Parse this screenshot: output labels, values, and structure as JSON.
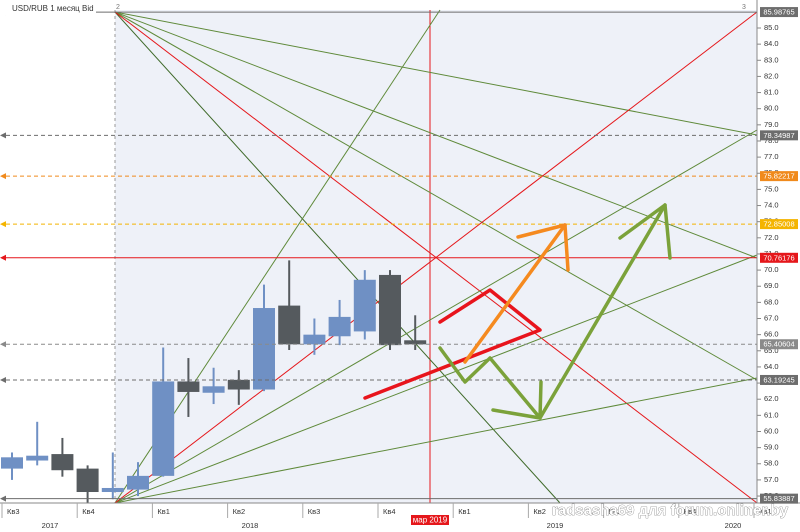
{
  "chart_data": {
    "type": "candlestick",
    "title": "USD/RUB 1 месяц Bid",
    "open": [
      57.7,
      58.2,
      58.6,
      57.7,
      56.25,
      56.4,
      57.25,
      63.1,
      62.4,
      63.2,
      62.6,
      67.8,
      65.4,
      65.9,
      66.2,
      69.7,
      65.65
    ],
    "high": [
      58.7,
      60.6,
      59.6,
      57.9,
      58.7,
      58.1,
      65.2,
      64.55,
      63.95,
      63.8,
      69.1,
      70.6,
      67.0,
      68.15,
      70.0,
      70.0,
      67.2
    ],
    "low": [
      57.0,
      57.9,
      57.2,
      55.6,
      55.8,
      56.0,
      57.2,
      60.9,
      61.7,
      61.65,
      62.5,
      65.05,
      64.75,
      65.35,
      65.7,
      65.05,
      65.05
    ],
    "close": [
      58.4,
      58.5,
      57.6,
      56.25,
      56.5,
      57.25,
      63.1,
      62.45,
      62.8,
      62.6,
      67.65,
      65.4,
      66.0,
      67.1,
      69.4,
      65.35,
      65.4
    ],
    "up_color": "#6f90c4",
    "down_color": "#555a5e",
    "ylim": [
      55.6,
      86.1
    ],
    "yticks": [
      {
        "value": 56,
        "label": "56.0"
      },
      {
        "value": 57,
        "label": "57.0"
      },
      {
        "value": 58,
        "label": "58.0"
      },
      {
        "value": 59,
        "label": "59.0"
      },
      {
        "value": 60,
        "label": "60.0"
      },
      {
        "value": 61,
        "label": "61.0"
      },
      {
        "value": 62,
        "label": "62.0"
      },
      {
        "value": 63,
        "label": "63.0"
      },
      {
        "value": 64,
        "label": "64.0"
      },
      {
        "value": 65,
        "label": "65.0"
      },
      {
        "value": 66,
        "label": "66.0"
      },
      {
        "value": 67,
        "label": "67.0"
      },
      {
        "value": 68,
        "label": "68.0"
      },
      {
        "value": 69,
        "label": "69.0"
      },
      {
        "value": 70,
        "label": "70.0"
      },
      {
        "value": 71,
        "label": "71.0"
      },
      {
        "value": 72,
        "label": "72.0"
      },
      {
        "value": 73,
        "label": "73.0"
      },
      {
        "value": 74,
        "label": "74.0"
      },
      {
        "value": 75,
        "label": "75.0"
      },
      {
        "value": 76,
        "label": "76.0"
      },
      {
        "value": 77,
        "label": "77.0"
      },
      {
        "value": 78,
        "label": "78.0"
      },
      {
        "value": 79,
        "label": "79.0"
      },
      {
        "value": 80,
        "label": "80.0"
      },
      {
        "value": 81,
        "label": "81.0"
      },
      {
        "value": 82,
        "label": "82.0"
      },
      {
        "value": 83,
        "label": "83.0"
      },
      {
        "value": 84,
        "label": "84.0"
      },
      {
        "value": 85,
        "label": "85.0"
      }
    ],
    "levels": [
      {
        "value": 85.98765,
        "color": "#6d6d6d",
        "dashed": false
      },
      {
        "value": 78.34987,
        "color": "#6d6d6d",
        "dashed": true
      },
      {
        "value": 75.82217,
        "color": "#f08a1c",
        "dashed": true
      },
      {
        "value": 72.85008,
        "color": "#f4b400",
        "dashed": true
      },
      {
        "value": 70.76176,
        "color": "#e5171b",
        "dashed": false
      },
      {
        "value": 65.40604,
        "color": "#8a8a8a",
        "dashed": true
      },
      {
        "value": 63.19245,
        "color": "#6d6d6d",
        "dashed": true
      },
      {
        "value": 55.83887,
        "color": "#6d6d6d",
        "dashed": false
      }
    ],
    "quarter_labels": [
      "Кв3",
      "Кв4",
      "Кв1",
      "Кв2",
      "Кв3",
      "Кв4",
      "Кв1",
      "Кв2",
      "Кв3",
      "Кв4",
      "Кв1"
    ],
    "year_labels": [
      "2017",
      "2018",
      "2019",
      "2020"
    ],
    "date_marker": "мар 2019",
    "point_markers": [
      "2",
      "3"
    ],
    "watermark": "radsasha69 для forum.onliner.by"
  }
}
